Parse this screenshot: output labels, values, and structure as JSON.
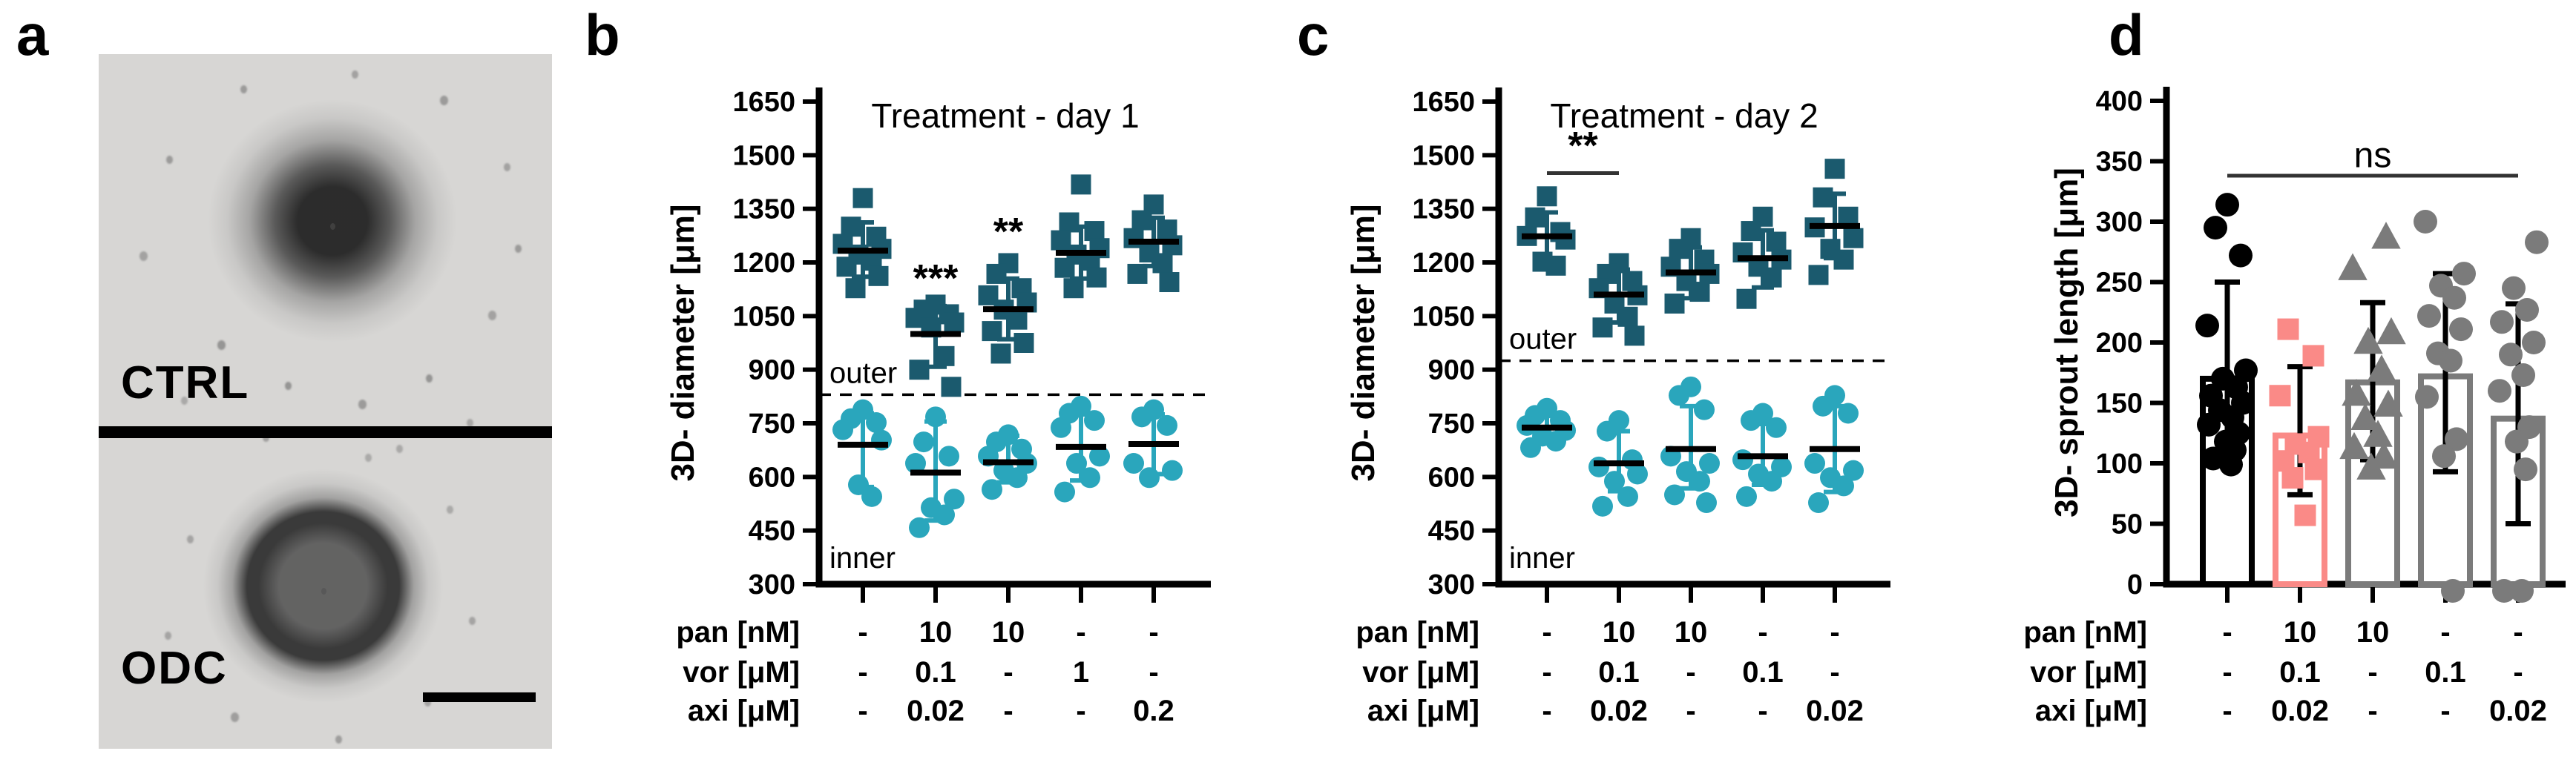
{
  "panel_labels": [
    {
      "id": "a",
      "text": "a"
    },
    {
      "id": "b",
      "text": "b"
    },
    {
      "id": "c",
      "text": "c"
    },
    {
      "id": "d",
      "text": "d"
    }
  ],
  "panel_a": {
    "images": [
      {
        "label": "CTRL"
      },
      {
        "label": "ODC"
      }
    ],
    "scale_bar": true
  },
  "colors": {
    "outer_teal": "#1b5a6e",
    "inner_teal": "#2aa6bc",
    "salmon": "#fa8a87",
    "gray": "#7b7b7b",
    "black": "#000000"
  },
  "chart_data": [
    {
      "id": "b",
      "type": "scatter",
      "title": "Treatment - day 1",
      "ylabel": "3D- diameter [μm]",
      "ylim": [
        300,
        1650
      ],
      "yticks": [
        1650,
        1500,
        1350,
        1200,
        1050,
        900,
        750,
        600,
        450,
        300
      ],
      "grid": false,
      "divider_value": 830,
      "region_labels": {
        "above": "outer",
        "below": "inner"
      },
      "series": [
        {
          "name": "outer",
          "marker": "square",
          "color_key": "outer_teal",
          "groups": [
            {
              "mean": 1233,
              "err": [
                1160,
                1312
              ],
              "points": [
                1380,
                1300,
                1272,
                1252,
                1238,
                1222,
                1205,
                1188,
                1162,
                1128
              ]
            },
            {
              "mean": 1000,
              "err": [
                908,
                1078
              ],
              "points": [
                1082,
                1068,
                1055,
                1045,
                1032,
                1018,
                938,
                900,
                852
              ]
            },
            {
              "mean": 1069,
              "err": [
                985,
                1155
              ],
              "points": [
                1198,
                1168,
                1128,
                1108,
                1088,
                1068,
                1040,
                1008,
                975,
                945
              ]
            },
            {
              "mean": 1227,
              "err": [
                1155,
                1300
              ],
              "points": [
                1418,
                1312,
                1288,
                1262,
                1240,
                1222,
                1205,
                1185,
                1158,
                1128
              ]
            },
            {
              "mean": 1258,
              "err": [
                1190,
                1325
              ],
              "points": [
                1362,
                1318,
                1292,
                1268,
                1248,
                1228,
                1198,
                1168,
                1145
              ]
            }
          ]
        },
        {
          "name": "inner",
          "marker": "circle",
          "color_key": "inner_teal",
          "groups": [
            {
              "mean": 690,
              "err": [
                572,
                778
              ],
              "points": [
                788,
                763,
                752,
                732,
                703,
                578,
                545
              ]
            },
            {
              "mean": 612,
              "err": [
                478,
                755
              ],
              "points": [
                768,
                698,
                658,
                638,
                538,
                514,
                494,
                458
              ]
            },
            {
              "mean": 641,
              "err": [
                585,
                715
              ],
              "points": [
                718,
                698,
                678,
                658,
                638,
                618,
                598,
                565
              ]
            },
            {
              "mean": 684,
              "err": [
                590,
                775
              ],
              "points": [
                798,
                778,
                758,
                738,
                658,
                638,
                598,
                558
              ]
            },
            {
              "mean": 692,
              "err": [
                608,
                775
              ],
              "points": [
                788,
                768,
                744,
                638,
                618,
                598
              ]
            }
          ]
        }
      ],
      "significance": [
        {
          "style": "text",
          "text": "***",
          "group": 1,
          "value": 1119
        },
        {
          "style": "text",
          "text": "**",
          "group": 2,
          "value": 1250
        }
      ],
      "table": [
        {
          "label": "pan [nM]",
          "values": [
            "-",
            "10",
            "10",
            "-",
            "-"
          ]
        },
        {
          "label": "vor [μM]",
          "values": [
            "-",
            "0.1",
            "-",
            "1",
            "-"
          ]
        },
        {
          "label": "axi [μM]",
          "values": [
            "-",
            "0.02",
            "-",
            "-",
            "0.2"
          ]
        }
      ]
    },
    {
      "id": "c",
      "type": "scatter",
      "title": "Treatment - day 2",
      "ylabel": "3D- diameter [μm]",
      "ylim": [
        300,
        1650
      ],
      "yticks": [
        1650,
        1500,
        1350,
        1200,
        1050,
        900,
        750,
        600,
        450,
        300
      ],
      "grid": false,
      "divider_value": 925,
      "region_labels": {
        "above": "outer",
        "below": "inner"
      },
      "series": [
        {
          "name": "outer",
          "marker": "square",
          "color_key": "outer_teal",
          "groups": [
            {
              "mean": 1273,
              "err": [
                1205,
                1340
              ],
              "points": [
                1385,
                1326,
                1285,
                1274,
                1264,
                1202,
                1191
              ]
            },
            {
              "mean": 1110,
              "err": [
                1032,
                1180
              ],
              "points": [
                1198,
                1168,
                1148,
                1128,
                1108,
                1085,
                1048,
                1018,
                995
              ]
            },
            {
              "mean": 1172,
              "err": [
                1100,
                1242
              ],
              "points": [
                1268,
                1238,
                1208,
                1188,
                1168,
                1148,
                1118,
                1085
              ]
            },
            {
              "mean": 1212,
              "err": [
                1130,
                1290
              ],
              "points": [
                1328,
                1288,
                1258,
                1228,
                1208,
                1188,
                1158,
                1098
              ]
            },
            {
              "mean": 1302,
              "err": [
                1212,
                1392
              ],
              "points": [
                1462,
                1382,
                1328,
                1298,
                1268,
                1238,
                1208,
                1165
              ]
            }
          ]
        },
        {
          "name": "inner",
          "marker": "circle",
          "color_key": "inner_teal",
          "groups": [
            {
              "mean": 738,
              "err": [
                700,
                778
              ],
              "points": [
                792,
                772,
                758,
                744,
                730,
                714,
                700,
                682
              ]
            },
            {
              "mean": 638,
              "err": [
                560,
                728
              ],
              "points": [
                758,
                728,
                648,
                628,
                608,
                588,
                545,
                518
              ]
            },
            {
              "mean": 678,
              "err": [
                568,
                798
              ],
              "points": [
                852,
                828,
                788,
                658,
                638,
                615,
                588,
                550,
                528
              ]
            },
            {
              "mean": 658,
              "err": [
                578,
                748
              ],
              "points": [
                778,
                758,
                738,
                648,
                628,
                608,
                588,
                545
              ]
            },
            {
              "mean": 678,
              "err": [
                558,
                798
              ],
              "points": [
                828,
                798,
                778,
                638,
                618,
                598,
                575,
                528
              ]
            }
          ]
        }
      ],
      "significance": [
        {
          "style": "bracket",
          "text": "**",
          "from": 0,
          "to": 1,
          "line_value": 1450,
          "text_value": 1490
        }
      ],
      "table": [
        {
          "label": "pan [nM]",
          "values": [
            "-",
            "10",
            "10",
            "-",
            "-"
          ]
        },
        {
          "label": "vor [μM]",
          "values": [
            "-",
            "0.1",
            "-",
            "0.1",
            "-"
          ]
        },
        {
          "label": "axi [μM]",
          "values": [
            "-",
            "0.02",
            "-",
            "-",
            "0.02"
          ]
        }
      ]
    },
    {
      "id": "d",
      "type": "bar",
      "title": "",
      "ylabel": "3D- sprout length [μm]",
      "ylim": [
        0,
        400
      ],
      "yticks": [
        400,
        350,
        300,
        250,
        200,
        150,
        100,
        50,
        0
      ],
      "grid": false,
      "groups": [
        {
          "bar": 170,
          "err": [
            100,
            250
          ],
          "marker": "circle",
          "color_key": "black",
          "points": [
            314,
            295,
            272,
            214,
            177,
            170,
            163,
            156,
            150,
            144,
            138,
            132,
            125,
            118,
            111,
            104,
            99
          ]
        },
        {
          "bar": 123,
          "err": [
            74,
            180
          ],
          "marker": "square",
          "color_key": "salmon",
          "points": [
            211,
            189,
            156,
            122,
            116,
            109,
            102,
            95,
            88,
            57
          ]
        },
        {
          "bar": 167,
          "err": [
            103,
            233
          ],
          "marker": "triangle",
          "color_key": "gray",
          "points": [
            287,
            261,
            208,
            200,
            177,
            157,
            148,
            137,
            123,
            113,
            105,
            96
          ]
        },
        {
          "bar": 172,
          "err": [
            93,
            257
          ],
          "marker": "circle",
          "color_key": "gray",
          "points": [
            300,
            257,
            247,
            237,
            222,
            211,
            191,
            185,
            155,
            120,
            106,
            0
          ]
        },
        {
          "bar": 137,
          "err": [
            50,
            232
          ],
          "marker": "circle",
          "color_key": "gray",
          "points": [
            283,
            245,
            227,
            217,
            200,
            190,
            173,
            160,
            130,
            118,
            95,
            0,
            0
          ]
        }
      ],
      "significance": [
        {
          "style": "bracket",
          "text": "ns",
          "from": 0,
          "to": 4,
          "line_value": 338,
          "text_value": 345
        }
      ],
      "table": [
        {
          "label": "pan [nM]",
          "values": [
            "-",
            "10",
            "10",
            "-",
            "-"
          ]
        },
        {
          "label": "vor [μM]",
          "values": [
            "-",
            "0.1",
            "-",
            "0.1",
            "-"
          ]
        },
        {
          "label": "axi [μM]",
          "values": [
            "-",
            "0.02",
            "-",
            "-",
            "0.02"
          ]
        }
      ]
    }
  ]
}
